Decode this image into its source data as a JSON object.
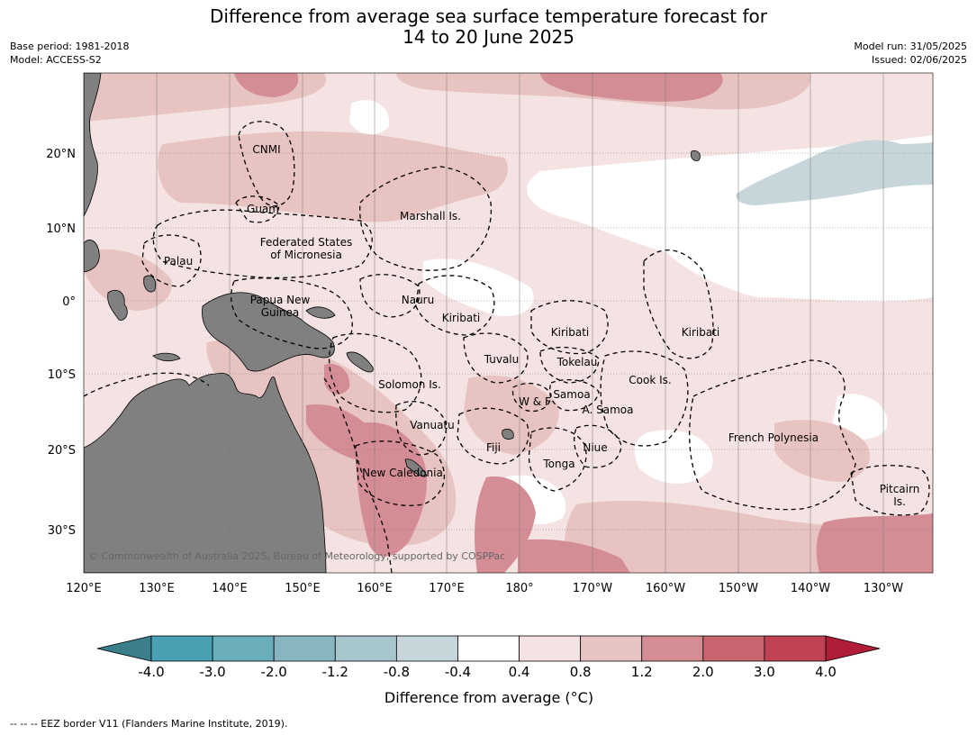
{
  "header": {
    "title_line1": "Difference from average sea surface temperature forecast for",
    "title_line2": "14 to 20 June 2025",
    "base_period": "Base period: 1981-2018",
    "model": "Model: ACCESS-S2",
    "model_run": "Model run: 31/05/2025",
    "issued": "Issued: 02/06/2025"
  },
  "map": {
    "lon_labels": [
      "120°E",
      "130°E",
      "140°E",
      "150°E",
      "160°E",
      "170°E",
      "180°",
      "170°W",
      "160°W",
      "150°W",
      "140°W",
      "130°W"
    ],
    "lat_labels": [
      "20°N",
      "10°N",
      "0°",
      "10°S",
      "20°S",
      "30°S"
    ],
    "copyright": "© Commonwealth of Australia 2025, Bureau of Meteorology, supported by COSPPac",
    "regions": [
      {
        "name": "CNMI",
        "lines": [
          "CNMI"
        ]
      },
      {
        "name": "Guam",
        "lines": [
          "Guam"
        ]
      },
      {
        "name": "Marshall Is.",
        "lines": [
          "Marshall Is."
        ]
      },
      {
        "name": "Federated States of Micronesia",
        "lines": [
          "Federated States",
          "of Micronesia"
        ]
      },
      {
        "name": "Palau",
        "lines": [
          "Palau"
        ]
      },
      {
        "name": "Nauru",
        "lines": [
          "Nauru"
        ]
      },
      {
        "name": "Papua New Guinea",
        "lines": [
          "Papua New",
          "Guinea"
        ]
      },
      {
        "name": "Kiribati-west",
        "lines": [
          "Kiribati"
        ]
      },
      {
        "name": "Kiribati-central",
        "lines": [
          "Kiribati"
        ]
      },
      {
        "name": "Kiribati-east",
        "lines": [
          "Kiribati"
        ]
      },
      {
        "name": "Tuvalu",
        "lines": [
          "Tuvalu"
        ]
      },
      {
        "name": "Tokelau",
        "lines": [
          "Tokelau"
        ]
      },
      {
        "name": "Cook Is.",
        "lines": [
          "Cook Is."
        ]
      },
      {
        "name": "Solomon Is.",
        "lines": [
          "Solomon Is."
        ]
      },
      {
        "name": "Samoa",
        "lines": [
          "Samoa"
        ]
      },
      {
        "name": "W & F",
        "lines": [
          "W & F"
        ]
      },
      {
        "name": "A. Samoa",
        "lines": [
          "A. Samoa"
        ]
      },
      {
        "name": "Vanuatu",
        "lines": [
          "Vanuatu"
        ]
      },
      {
        "name": "Fiji",
        "lines": [
          "Fiji"
        ]
      },
      {
        "name": "Niue",
        "lines": [
          "Niue"
        ]
      },
      {
        "name": "French Polynesia",
        "lines": [
          "French Polynesia"
        ]
      },
      {
        "name": "Tonga",
        "lines": [
          "Tonga"
        ]
      },
      {
        "name": "New Caledonia",
        "lines": [
          "New Caledonia"
        ]
      },
      {
        "name": "Pitcairn Is.",
        "lines": [
          "Pitcairn",
          "Is."
        ]
      }
    ]
  },
  "colorbar": {
    "title": "Difference from average (°C)",
    "ticks": [
      "-4.0",
      "-3.0",
      "-2.0",
      "-1.2",
      "-0.8",
      "-0.4",
      "0.4",
      "0.8",
      "1.2",
      "2.0",
      "3.0",
      "4.0"
    ],
    "colors": [
      "#4aa0b3",
      "#6aaebc",
      "#88b5c0",
      "#a6c6cb",
      "#c7d6da",
      "#ffffff",
      "#f4e3e2",
      "#e7c3c1",
      "#d48d95",
      "#c96570",
      "#bf4354"
    ],
    "under_color": "#3a7f8b",
    "over_color": "#b01d38"
  },
  "legend_note": "-- -- -- EEZ border V11 (Flanders Marine Institute, 2019)."
}
